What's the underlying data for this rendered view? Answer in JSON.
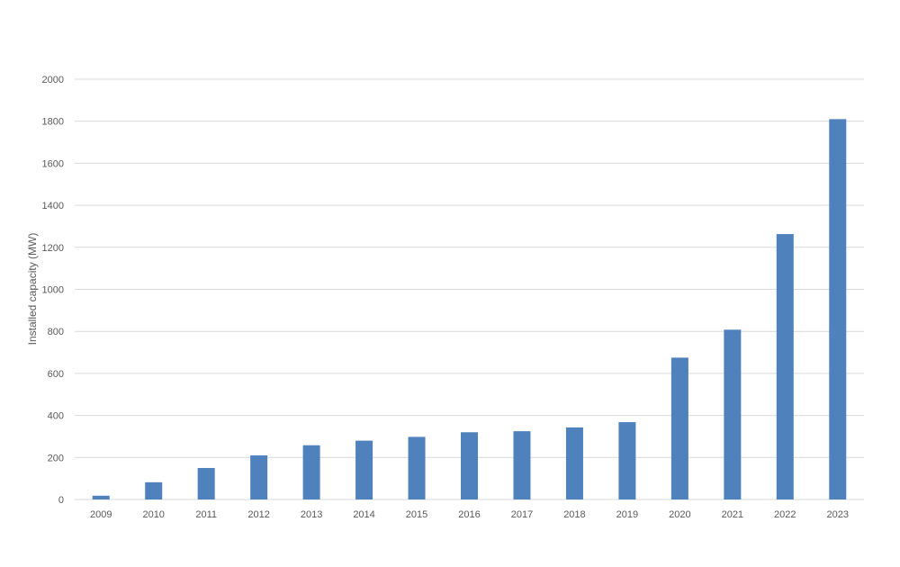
{
  "chart_data": {
    "type": "bar",
    "title": "",
    "xlabel": "",
    "ylabel": "Installed capacity (MW)",
    "ylim": [
      0,
      2000
    ],
    "y_ticks": [
      0,
      200,
      400,
      600,
      800,
      1000,
      1200,
      1400,
      1600,
      1800,
      2000
    ],
    "grid": "horizontal",
    "legend": "none",
    "bar_color": "#4f81bd",
    "categories": [
      "2009",
      "2010",
      "2011",
      "2012",
      "2013",
      "2014",
      "2015",
      "2016",
      "2017",
      "2018",
      "2019",
      "2020",
      "2021",
      "2022",
      "2023"
    ],
    "values": [
      18,
      82,
      150,
      210,
      258,
      280,
      298,
      320,
      325,
      343,
      368,
      675,
      808,
      1263,
      1810
    ]
  }
}
